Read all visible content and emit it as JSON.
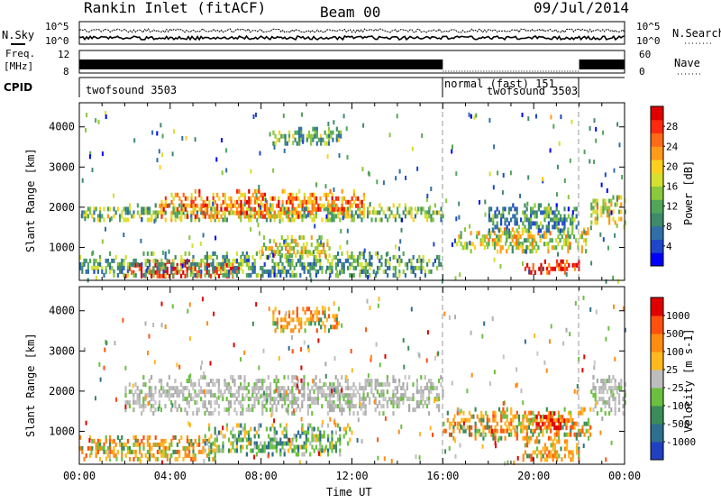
{
  "header": {
    "station": "Rankin Inlet (fitACF)",
    "beam": "Beam 00",
    "date": "09/Jul/2014"
  },
  "panels": {
    "noise": {
      "left_label": "N.Sky",
      "right_label": "N.Search",
      "left_ticks": [
        "10^5",
        "10^0"
      ],
      "right_ticks": [
        "10^5",
        "10^0"
      ]
    },
    "freq": {
      "left_label_1": "Freq.",
      "left_label_2": "[MHz]",
      "left_ticks": [
        "12",
        "8"
      ],
      "right_label": "Nave",
      "right_ticks": [
        "60",
        "0"
      ]
    },
    "cpid": {
      "label": "CPID",
      "segments": [
        {
          "name": "twofsound 3503",
          "start": 0,
          "end": 16
        },
        {
          "name": "normal (fast) 151",
          "start": 16,
          "end": 22
        },
        {
          "name": "twofsound 3503",
          "start": 22,
          "end": 24
        }
      ]
    }
  },
  "chart_data": [
    {
      "type": "heatmap",
      "panel": "power",
      "ylabel": "Slant Range [km]",
      "xlabel": "",
      "xlim": [
        0,
        24
      ],
      "ylim": [
        180,
        4600
      ],
      "yticks": [
        "1000",
        "2000",
        "3000",
        "4000"
      ],
      "colorbar": {
        "label": "Power [dB]",
        "ticks": [
          "4",
          "8",
          "12",
          "16",
          "20",
          "24",
          "28"
        ],
        "colors": [
          "#0000ff",
          "#1e48c8",
          "#2f6fa6",
          "#3f8a6a",
          "#52a65a",
          "#8ac83c",
          "#d6e030",
          "#ffcf20",
          "#ff9a1a",
          "#ff6a18",
          "#ff2a10",
          "#e00000"
        ]
      },
      "blobs": [
        {
          "t0": 0.0,
          "t1": 16.0,
          "r0": 1700,
          "r1": 2100,
          "level": 0.45
        },
        {
          "t0": 3.5,
          "t1": 12.5,
          "r0": 1800,
          "r1": 2450,
          "level": 0.75
        },
        {
          "t0": 8.5,
          "t1": 11.5,
          "r0": 3600,
          "r1": 4000,
          "level": 0.4
        },
        {
          "t0": 2.0,
          "t1": 7.0,
          "r0": 300,
          "r1": 700,
          "level": 0.95
        },
        {
          "t0": 0.0,
          "t1": 16.0,
          "r0": 300,
          "r1": 900,
          "level": 0.35
        },
        {
          "t0": 8.0,
          "t1": 11.0,
          "r0": 800,
          "r1": 1300,
          "level": 0.55
        },
        {
          "t0": 16.5,
          "t1": 22.5,
          "r0": 900,
          "r1": 1500,
          "level": 0.55
        },
        {
          "t0": 19.5,
          "t1": 22.0,
          "r0": 400,
          "r1": 700,
          "level": 0.9
        },
        {
          "t0": 22.5,
          "t1": 24.0,
          "r0": 1600,
          "r1": 2300,
          "level": 0.55
        },
        {
          "t0": 18.0,
          "t1": 22.0,
          "r0": 1400,
          "r1": 2100,
          "level": 0.3
        }
      ]
    },
    {
      "type": "heatmap",
      "panel": "velocity",
      "ylabel": "Slant Range [km]",
      "xlabel": "Time UT",
      "xlim": [
        0,
        24
      ],
      "ylim": [
        180,
        4600
      ],
      "xticks": [
        "00:00",
        "04:00",
        "08:00",
        "12:00",
        "16:00",
        "20:00",
        "00:00"
      ],
      "yticks": [
        "1000",
        "2000",
        "3000",
        "4000"
      ],
      "colorbar": {
        "label": "Velocity [m s-1]",
        "ticks": [
          "1000",
          "500",
          "100",
          "25",
          "-25",
          "-100",
          "-500",
          "-1000"
        ],
        "colors": [
          "#2040c0",
          "#2e6e8e",
          "#3a8c5a",
          "#6cc040",
          "#bdbdbd",
          "#ffb81e",
          "#ff8c12",
          "#ff5010",
          "#e00000"
        ]
      },
      "blobs": [
        {
          "t0": 2.0,
          "t1": 16.0,
          "r0": 1500,
          "r1": 2400,
          "level": "grey"
        },
        {
          "t0": 0.0,
          "t1": 6.0,
          "r0": 300,
          "r1": 900,
          "level": "orange"
        },
        {
          "t0": 5.5,
          "t1": 12.0,
          "r0": 400,
          "r1": 1200,
          "level": "green"
        },
        {
          "t0": 8.5,
          "t1": 11.5,
          "r0": 3500,
          "r1": 4100,
          "level": "orange"
        },
        {
          "t0": 16.0,
          "t1": 22.5,
          "r0": 800,
          "r1": 1600,
          "level": "orange"
        },
        {
          "t0": 19.5,
          "t1": 22.0,
          "r0": 300,
          "r1": 800,
          "level": "orange"
        },
        {
          "t0": 20.0,
          "t1": 21.5,
          "r0": 1100,
          "r1": 1500,
          "level": "red"
        },
        {
          "t0": 22.5,
          "t1": 24.0,
          "r0": 1500,
          "r1": 2400,
          "level": "grey"
        }
      ]
    }
  ]
}
